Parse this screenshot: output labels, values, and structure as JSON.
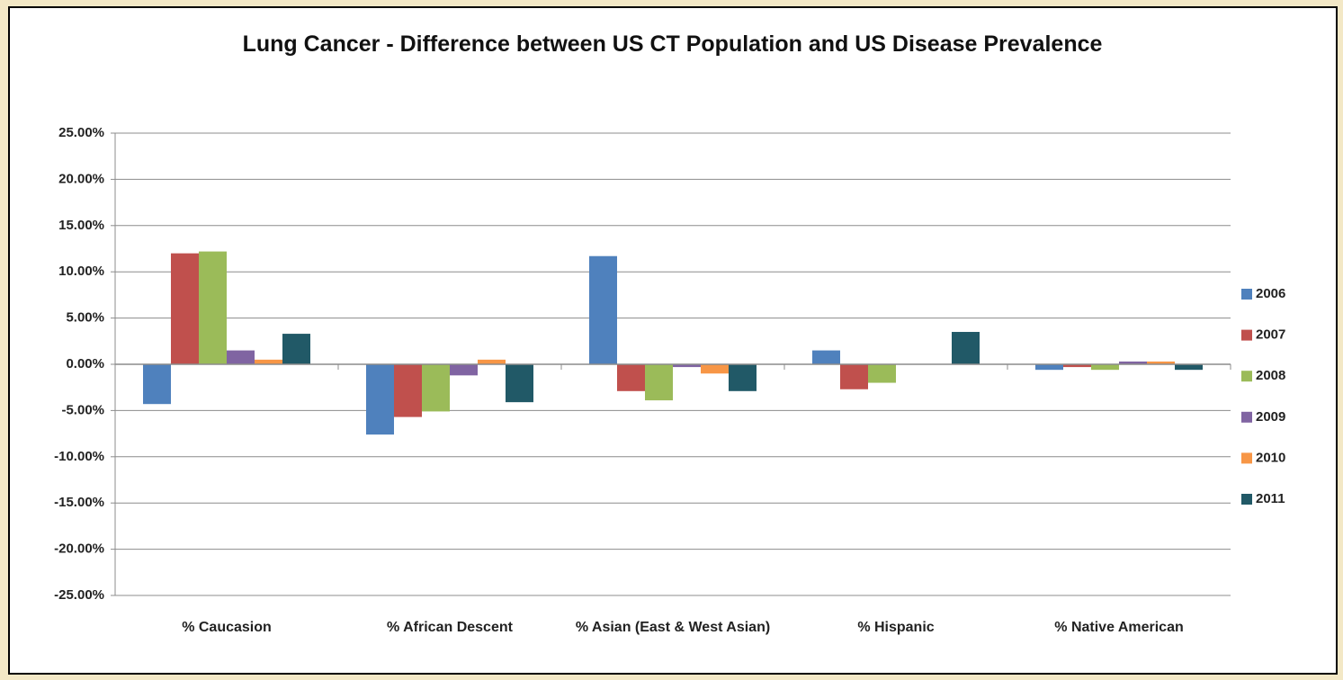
{
  "chart_data": {
    "type": "bar",
    "title": "Lung Cancer - Difference between US CT Population and US Disease Prevalence",
    "categories": [
      "% Caucasion",
      "% African Descent",
      "% Asian (East & West Asian)",
      "% Hispanic",
      "% Native American"
    ],
    "series": [
      {
        "name": "2006",
        "color": "#4f81bd",
        "values": [
          -4.3,
          -7.6,
          11.7,
          1.5,
          -0.6
        ]
      },
      {
        "name": "2007",
        "color": "#c0504d",
        "values": [
          12.0,
          -5.7,
          -2.9,
          -2.7,
          -0.3
        ]
      },
      {
        "name": "2008",
        "color": "#9bbb59",
        "values": [
          12.2,
          -5.1,
          -3.9,
          -2.0,
          -0.6
        ]
      },
      {
        "name": "2009",
        "color": "#8064a2",
        "values": [
          1.5,
          -1.2,
          -0.3,
          0,
          0.3
        ]
      },
      {
        "name": "2010",
        "color": "#f79646",
        "values": [
          0.5,
          0.5,
          -1.0,
          0,
          0.3
        ]
      },
      {
        "name": "2011",
        "color": "#215967",
        "values": [
          3.3,
          -4.1,
          -2.9,
          3.5,
          -0.6
        ]
      }
    ],
    "ylim": [
      -25,
      25
    ],
    "yticks": [
      {
        "value": 25,
        "label": "25.00%"
      },
      {
        "value": 20,
        "label": "20.00%"
      },
      {
        "value": 15,
        "label": "15.00%"
      },
      {
        "value": 10,
        "label": "10.00%"
      },
      {
        "value": 5,
        "label": "5.00%"
      },
      {
        "value": 0,
        "label": "0.00%"
      },
      {
        "value": -5,
        "label": "-5.00%"
      },
      {
        "value": -10,
        "label": "-10.00%"
      },
      {
        "value": -15,
        "label": "-15.00%"
      },
      {
        "value": -20,
        "label": "-20.00%"
      },
      {
        "value": -25,
        "label": "-25.00%"
      }
    ],
    "grid": true,
    "legend": "right"
  }
}
